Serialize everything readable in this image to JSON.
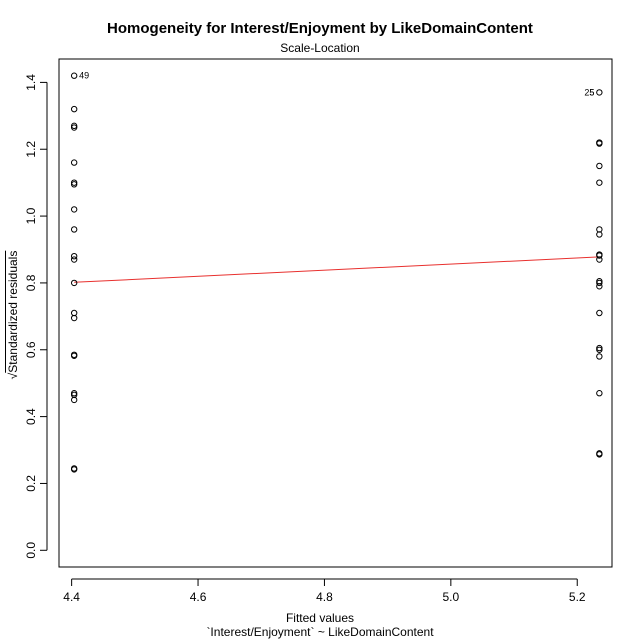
{
  "title": "Homogeneity for Interest/Enjoyment by LikeDomainContent",
  "subtitle": "Scale-Location",
  "xlabel": "Fitted values",
  "xlabel_formula": "`Interest/Enjoyment` ~ LikeDomainContent",
  "ylabel_prefix": "√",
  "ylabel_body": "Standardized residuals",
  "chart_data": {
    "type": "scatter",
    "title": "Homogeneity for Interest/Enjoyment by LikeDomainContent",
    "subtitle": "Scale-Location",
    "xlabel": "Fitted values",
    "ylabel": "√|Standardized residuals|",
    "xlim": [
      4.38,
      5.255
    ],
    "ylim": [
      -0.05,
      1.47
    ],
    "xticks": [
      "4.4",
      "4.6",
      "4.8",
      "5.0",
      "5.2"
    ],
    "yticks": [
      "0.0",
      "0.2",
      "0.4",
      "0.6",
      "0.8",
      "1.0",
      "1.2",
      "1.4"
    ],
    "grid": false,
    "colors": {
      "points": "#000000",
      "smoother": "#e8302e"
    },
    "points": [
      {
        "x": 4.404,
        "y": 1.42
      },
      {
        "x": 4.404,
        "y": 1.32
      },
      {
        "x": 4.404,
        "y": 1.27
      },
      {
        "x": 4.404,
        "y": 1.265
      },
      {
        "x": 4.404,
        "y": 1.16
      },
      {
        "x": 4.404,
        "y": 1.1
      },
      {
        "x": 4.404,
        "y": 1.095
      },
      {
        "x": 4.404,
        "y": 1.02
      },
      {
        "x": 4.404,
        "y": 0.96
      },
      {
        "x": 4.404,
        "y": 0.88
      },
      {
        "x": 4.404,
        "y": 0.87
      },
      {
        "x": 4.404,
        "y": 0.8
      },
      {
        "x": 4.404,
        "y": 0.71
      },
      {
        "x": 4.404,
        "y": 0.695
      },
      {
        "x": 4.404,
        "y": 0.585
      },
      {
        "x": 4.404,
        "y": 0.582
      },
      {
        "x": 4.404,
        "y": 0.47
      },
      {
        "x": 4.404,
        "y": 0.465
      },
      {
        "x": 4.404,
        "y": 0.45
      },
      {
        "x": 4.404,
        "y": 0.245
      },
      {
        "x": 4.404,
        "y": 0.242
      },
      {
        "x": 5.235,
        "y": 1.37
      },
      {
        "x": 5.235,
        "y": 1.22
      },
      {
        "x": 5.235,
        "y": 1.217
      },
      {
        "x": 5.235,
        "y": 1.15
      },
      {
        "x": 5.235,
        "y": 1.1
      },
      {
        "x": 5.235,
        "y": 0.96
      },
      {
        "x": 5.235,
        "y": 0.945
      },
      {
        "x": 5.235,
        "y": 0.885
      },
      {
        "x": 5.235,
        "y": 0.882
      },
      {
        "x": 5.235,
        "y": 0.87
      },
      {
        "x": 5.235,
        "y": 0.805
      },
      {
        "x": 5.235,
        "y": 0.8
      },
      {
        "x": 5.235,
        "y": 0.79
      },
      {
        "x": 5.235,
        "y": 0.71
      },
      {
        "x": 5.235,
        "y": 0.605
      },
      {
        "x": 5.235,
        "y": 0.6
      },
      {
        "x": 5.235,
        "y": 0.58
      },
      {
        "x": 5.235,
        "y": 0.47
      },
      {
        "x": 5.235,
        "y": 0.29
      },
      {
        "x": 5.235,
        "y": 0.287
      }
    ],
    "smoother": [
      {
        "x": 4.404,
        "y": 0.802
      },
      {
        "x": 5.235,
        "y": 0.878
      }
    ],
    "annotations": [
      {
        "text": "49",
        "x": 4.404,
        "y": 1.42,
        "anchor": "right"
      },
      {
        "text": "25",
        "x": 5.235,
        "y": 1.37,
        "anchor": "left"
      },
      {
        "text": "5",
        "x": 5.235,
        "y": 1.37,
        "anchor": "left"
      }
    ]
  }
}
